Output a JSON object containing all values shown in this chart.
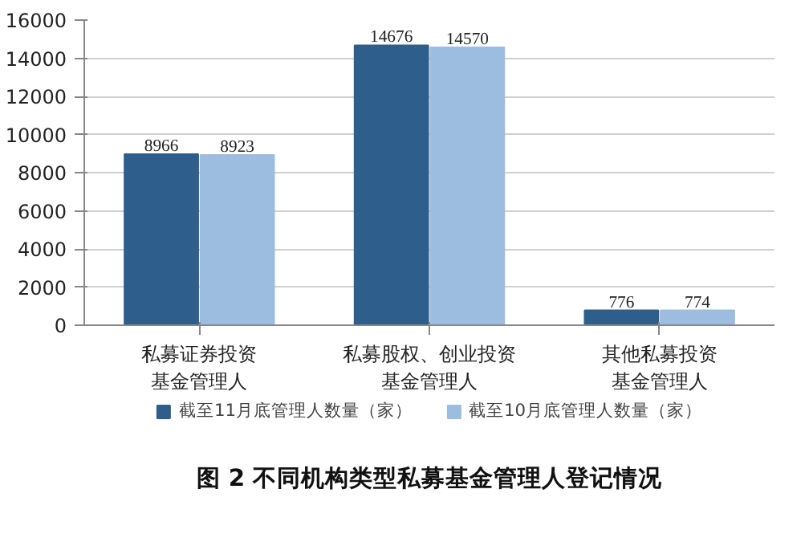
{
  "chart_data": {
    "type": "bar",
    "title": "图 2 不同机构类型私募基金管理人登记情况",
    "categories": [
      "私募证券投资基金管理人",
      "私募股权、创业投资基金管理人",
      "其他私募投资基金管理人"
    ],
    "series": [
      {
        "name": "截至11月底管理人数量（家）",
        "color": "#2e5f8c",
        "values": [
          8966,
          14676,
          776
        ]
      },
      {
        "name": "截至10月底管理人数量（家）",
        "color": "#9dbde0",
        "values": [
          8923,
          14570,
          774
        ]
      }
    ],
    "ylim": [
      0,
      16000
    ],
    "yticks": [
      0,
      2000,
      4000,
      6000,
      8000,
      10000,
      12000,
      14000,
      16000
    ],
    "grid": "y",
    "legend": "bottom",
    "data_labels": true
  }
}
